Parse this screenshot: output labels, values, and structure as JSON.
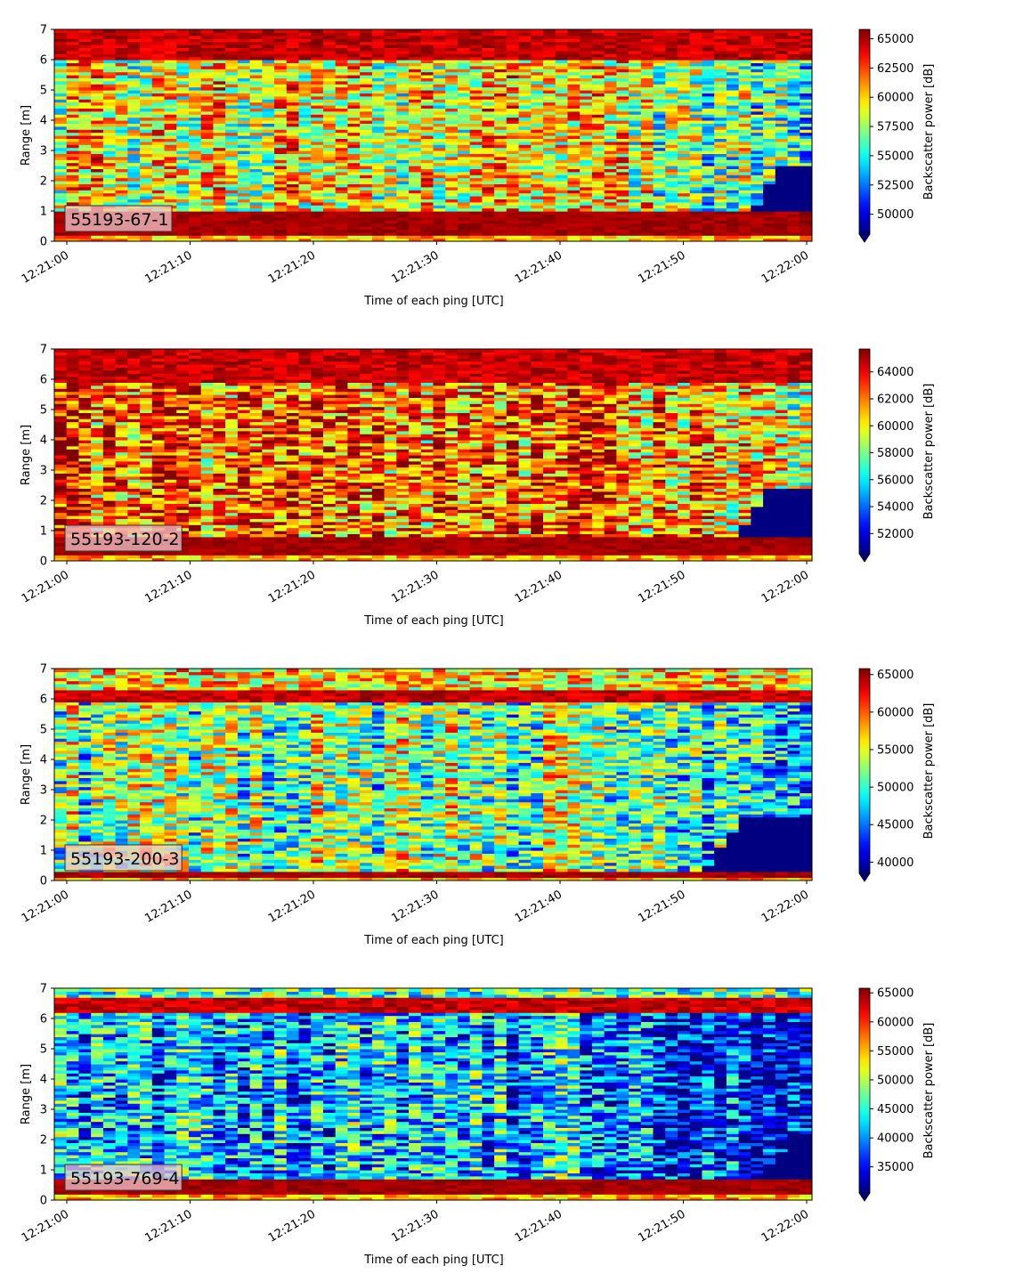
{
  "chart_data": [
    {
      "type": "heatmap",
      "label": "55193-67-1",
      "xlabel": "Time of each ping [UTC]",
      "ylabel": "Range [m]",
      "xlim": [
        "12:21:00",
        "12:22:00"
      ],
      "xticks": [
        "12:21:00",
        "12:21:10",
        "12:21:20",
        "12:21:30",
        "12:21:40",
        "12:21:50",
        "12:22:00"
      ],
      "ylim": [
        0,
        7
      ],
      "yticks": [
        0,
        1,
        2,
        3,
        4,
        5,
        6,
        7
      ],
      "colorbar": {
        "label": "Backscatter power [dB]",
        "min": 48300,
        "max": 65800,
        "ticks": [
          50000,
          52500,
          55000,
          57500,
          60000,
          62500,
          65000
        ],
        "tick_labels": [
          "50000",
          "52500",
          "55000",
          "57500",
          "60000",
          "62500",
          "65000"
        ],
        "colormap": "jet",
        "extend": "min"
      },
      "features": {
        "bottom_band": [
          0.25,
          1.0
        ],
        "surface_band": [
          6.05,
          7.0
        ],
        "mid_level": 0.62,
        "shadow_top": 2.5,
        "shadow_start": "12:21:55"
      }
    },
    {
      "type": "heatmap",
      "label": "55193-120-2",
      "xlabel": "Time of each ping [UTC]",
      "ylabel": "Range [m]",
      "xlim": [
        "12:21:00",
        "12:22:00"
      ],
      "xticks": [
        "12:21:00",
        "12:21:10",
        "12:21:20",
        "12:21:30",
        "12:21:40",
        "12:21:50",
        "12:22:00"
      ],
      "ylim": [
        0,
        7
      ],
      "yticks": [
        0,
        1,
        2,
        3,
        4,
        5,
        6,
        7
      ],
      "colorbar": {
        "label": "Backscatter power [dB]",
        "min": 50500,
        "max": 65700,
        "ticks": [
          52000,
          54000,
          56000,
          58000,
          60000,
          62000,
          64000
        ],
        "tick_labels": [
          "52000",
          "54000",
          "56000",
          "58000",
          "60000",
          "62000",
          "64000"
        ],
        "colormap": "jet",
        "extend": "min"
      },
      "features": {
        "bottom_band": [
          0.2,
          0.8
        ],
        "surface_band": [
          5.9,
          7.0
        ],
        "mid_level": 0.78,
        "shadow_top": 2.4,
        "shadow_start": "12:21:54"
      }
    },
    {
      "type": "heatmap",
      "label": "55193-200-3",
      "xlabel": "Time of each ping [UTC]",
      "ylabel": "Range [m]",
      "xlim": [
        "12:21:00",
        "12:22:00"
      ],
      "xticks": [
        "12:21:00",
        "12:21:10",
        "12:21:20",
        "12:21:30",
        "12:21:40",
        "12:21:50",
        "12:22:00"
      ],
      "ylim": [
        0,
        7
      ],
      "yticks": [
        0,
        1,
        2,
        3,
        4,
        5,
        6,
        7
      ],
      "colorbar": {
        "label": "Backscatter power [dB]",
        "min": 38500,
        "max": 65800,
        "ticks": [
          40000,
          45000,
          50000,
          55000,
          60000,
          65000
        ],
        "tick_labels": [
          "40000",
          "45000",
          "50000",
          "55000",
          "60000",
          "65000"
        ],
        "colormap": "jet",
        "extend": "min"
      },
      "features": {
        "bottom_band": [
          0.05,
          0.25
        ],
        "surface_band": [
          5.9,
          6.3
        ],
        "mid_level": 0.5,
        "shadow_top": 2.1,
        "shadow_start": "12:21:52"
      }
    },
    {
      "type": "heatmap",
      "label": "55193-769-4",
      "xlabel": "Time of each ping [UTC]",
      "ylabel": "Range [m]",
      "xlim": [
        "12:21:00",
        "12:22:00"
      ],
      "xticks": [
        "12:21:00",
        "12:21:10",
        "12:21:20",
        "12:21:30",
        "12:21:40",
        "12:21:50",
        "12:22:00"
      ],
      "ylim": [
        0,
        7
      ],
      "yticks": [
        0,
        1,
        2,
        3,
        4,
        5,
        6,
        7
      ],
      "colorbar": {
        "label": "Backscatter power [dB]",
        "min": 30500,
        "max": 65800,
        "ticks": [
          35000,
          40000,
          45000,
          50000,
          55000,
          60000,
          65000
        ],
        "tick_labels": [
          "35000",
          "40000",
          "45000",
          "50000",
          "55000",
          "60000",
          "65000"
        ],
        "colormap": "jet",
        "extend": "min"
      },
      "features": {
        "bottom_band": [
          0.25,
          0.65
        ],
        "surface_band": [
          6.2,
          6.7
        ],
        "mid_level": 0.3,
        "shadow_top": 2.2,
        "shadow_start": "12:21:56"
      }
    }
  ]
}
